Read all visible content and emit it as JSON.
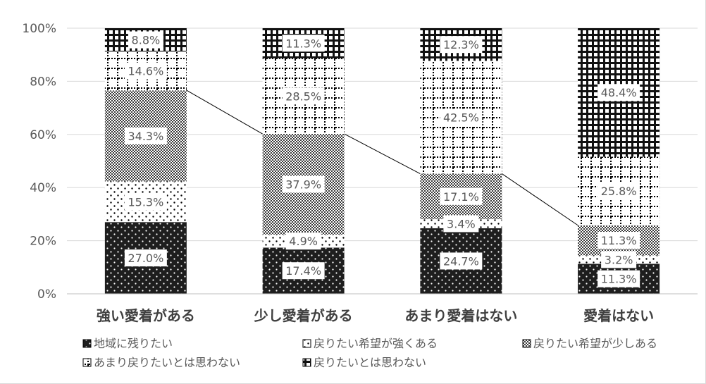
{
  "chart_data": {
    "type": "bar",
    "stacked": true,
    "percent": true,
    "title": "",
    "xlabel": "",
    "ylabel": "",
    "ylim": [
      0,
      100
    ],
    "yticks": [
      "0%",
      "20%",
      "40%",
      "60%",
      "80%",
      "100%"
    ],
    "grid": true,
    "legend_position": "bottom",
    "categories": [
      "強い愛着がある",
      "少し愛着がある",
      "あまり愛着はない",
      "愛着はない"
    ],
    "series": [
      {
        "name": "地域に残りたい",
        "values": [
          27.0,
          17.4,
          24.7,
          11.3
        ],
        "labels": [
          "27.0%",
          "17.4%",
          "24.7%",
          "11.3%"
        ]
      },
      {
        "name": "戻りたい希望が強くある",
        "values": [
          15.3,
          4.9,
          3.4,
          3.2
        ],
        "labels": [
          "15.3%",
          "4.9%",
          "3.4%",
          "3.2%"
        ]
      },
      {
        "name": "戻りたい希望が少しある",
        "values": [
          34.3,
          37.9,
          17.1,
          11.3
        ],
        "labels": [
          "34.3%",
          "37.9%",
          "17.1%",
          "11.3%"
        ]
      },
      {
        "name": "あまり戻りたいとは思わない",
        "values": [
          14.6,
          28.5,
          42.5,
          25.8
        ],
        "labels": [
          "14.6%",
          "28.5%",
          "42.5%",
          "25.8%"
        ]
      },
      {
        "name": "戻りたいとは思わない",
        "values": [
          8.8,
          11.3,
          12.3,
          48.4
        ],
        "labels": [
          "8.8%",
          "11.3%",
          "12.3%",
          "48.4%"
        ]
      }
    ],
    "series_line": {
      "connects": "top of 戻りたい希望が少しある",
      "color": "#000000"
    },
    "colors": {
      "axis": "#bfbfbf",
      "grid": "#d9d9d9",
      "text": "#595959",
      "category_text": "#404040",
      "ink": "#000000"
    }
  }
}
